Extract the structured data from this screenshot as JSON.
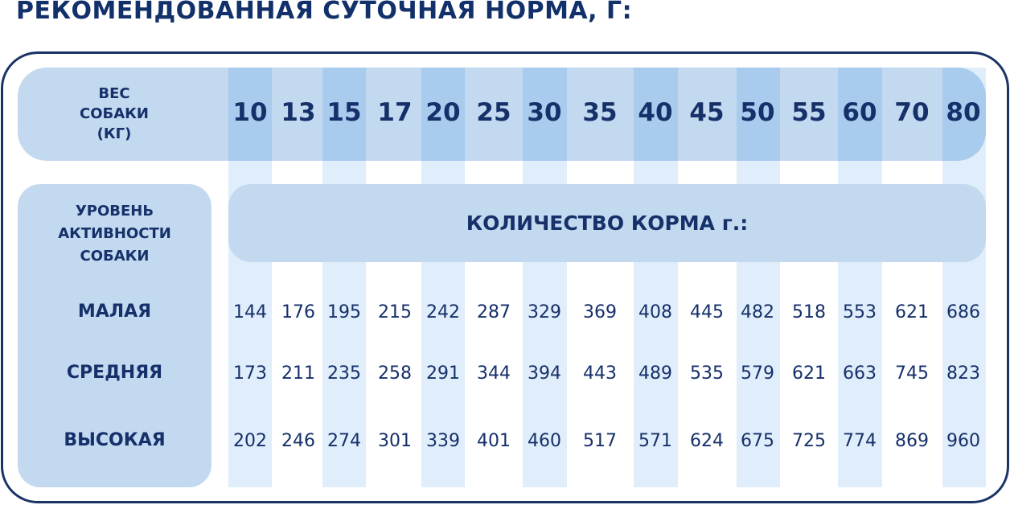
{
  "title": "РЕКОМЕНДОВАННАЯ СУТОЧНАЯ НОРМА, Г:",
  "header": {
    "label_lines": [
      "ВЕС",
      "СОБАКИ",
      "(КГ)"
    ]
  },
  "weights_kg": [
    "10",
    "13",
    "15",
    "17",
    "20",
    "25",
    "30",
    "35",
    "40",
    "45",
    "50",
    "55",
    "60",
    "70",
    "80"
  ],
  "activity": {
    "label_lines": [
      "УРОВЕНЬ",
      "АКТИВНОСТИ",
      "СОБАКИ"
    ]
  },
  "amount_label": "КОЛИЧЕСТВО КОРМА г.:",
  "rows": [
    {
      "level": "МАЛАЯ",
      "values": [
        "144",
        "176",
        "195",
        "215",
        "242",
        "287",
        "329",
        "369",
        "408",
        "445",
        "482",
        "518",
        "553",
        "621",
        "686"
      ]
    },
    {
      "level": "СРЕДНЯЯ",
      "values": [
        "173",
        "211",
        "235",
        "258",
        "291",
        "344",
        "394",
        "443",
        "489",
        "535",
        "579",
        "621",
        "663",
        "745",
        "823"
      ]
    },
    {
      "level": "ВЫСОКАЯ",
      "values": [
        "202",
        "246",
        "274",
        "301",
        "339",
        "401",
        "460",
        "517",
        "571",
        "624",
        "675",
        "725",
        "774",
        "869",
        "960"
      ]
    }
  ],
  "colors": {
    "text": "#16306a",
    "band": "#c2d9f0",
    "stripe_dark": "#a9cbee",
    "stripe_light": "#e0edfa",
    "frame": "#1b3466"
  }
}
